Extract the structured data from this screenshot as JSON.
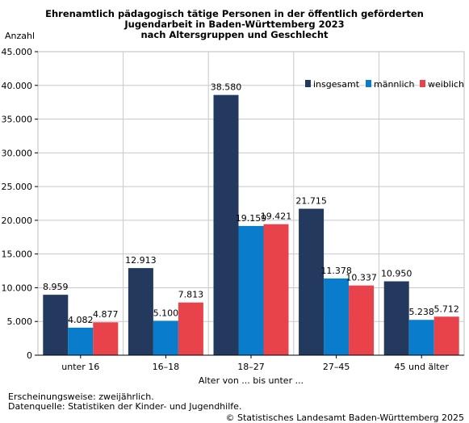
{
  "title_lines": [
    "Ehrenamtlich pädagogisch tätige Personen in der  öffentlich geförderten",
    "Jugendarbeit in Baden-Württemberg 2023",
    "nach Altersgruppen und Geschlecht"
  ],
  "footer": {
    "line1": "Erscheinungsweise: zweijährlich.",
    "line2": "Datenquelle: Statistiken der Kinder- und Jugendhilfe.",
    "copyright": "© Statistisches Landesamt Baden-Württemberg 2025"
  },
  "colors": {
    "insgesamt": "#233a5e",
    "maennlich": "#0a7ccc",
    "weiblich": "#e8424a"
  },
  "chart_data": {
    "type": "bar",
    "title": "Ehrenamtlich pädagogisch tätige Personen in der  öffentlich geförderten Jugendarbeit in Baden-Württemberg 2023 nach Altersgruppen und Geschlecht",
    "ylabel": "Anzahl",
    "xlabel": "Alter von ... bis unter ...",
    "ylim": [
      0,
      45000
    ],
    "yticks": [
      0,
      5000,
      10000,
      15000,
      20000,
      25000,
      30000,
      35000,
      40000,
      45000
    ],
    "ytick_labels": [
      "0",
      "5.000",
      "10.000",
      "15.000",
      "20.000",
      "25.000",
      "30.000",
      "35.000",
      "40.000",
      "45.000"
    ],
    "categories": [
      "unter 16",
      "16–18",
      "18–27",
      "27–45",
      "45 und älter"
    ],
    "series": [
      {
        "name": "insgesamt",
        "values": [
          8959,
          12913,
          38580,
          21715,
          10950
        ],
        "labels": [
          "8.959",
          "12.913",
          "38.580",
          "21.715",
          "10.950"
        ]
      },
      {
        "name": "männlich",
        "values": [
          4082,
          5100,
          19159,
          11378,
          5238
        ],
        "labels": [
          "4.082",
          "5.100",
          "19.159",
          "11.378",
          "5.238"
        ]
      },
      {
        "name": "weiblich",
        "values": [
          4877,
          7813,
          19421,
          10337,
          5712
        ],
        "labels": [
          "4.877",
          "7.813",
          "19.421",
          "10.337",
          "5.712"
        ]
      }
    ],
    "grid": true,
    "legend_position": "top-right"
  }
}
